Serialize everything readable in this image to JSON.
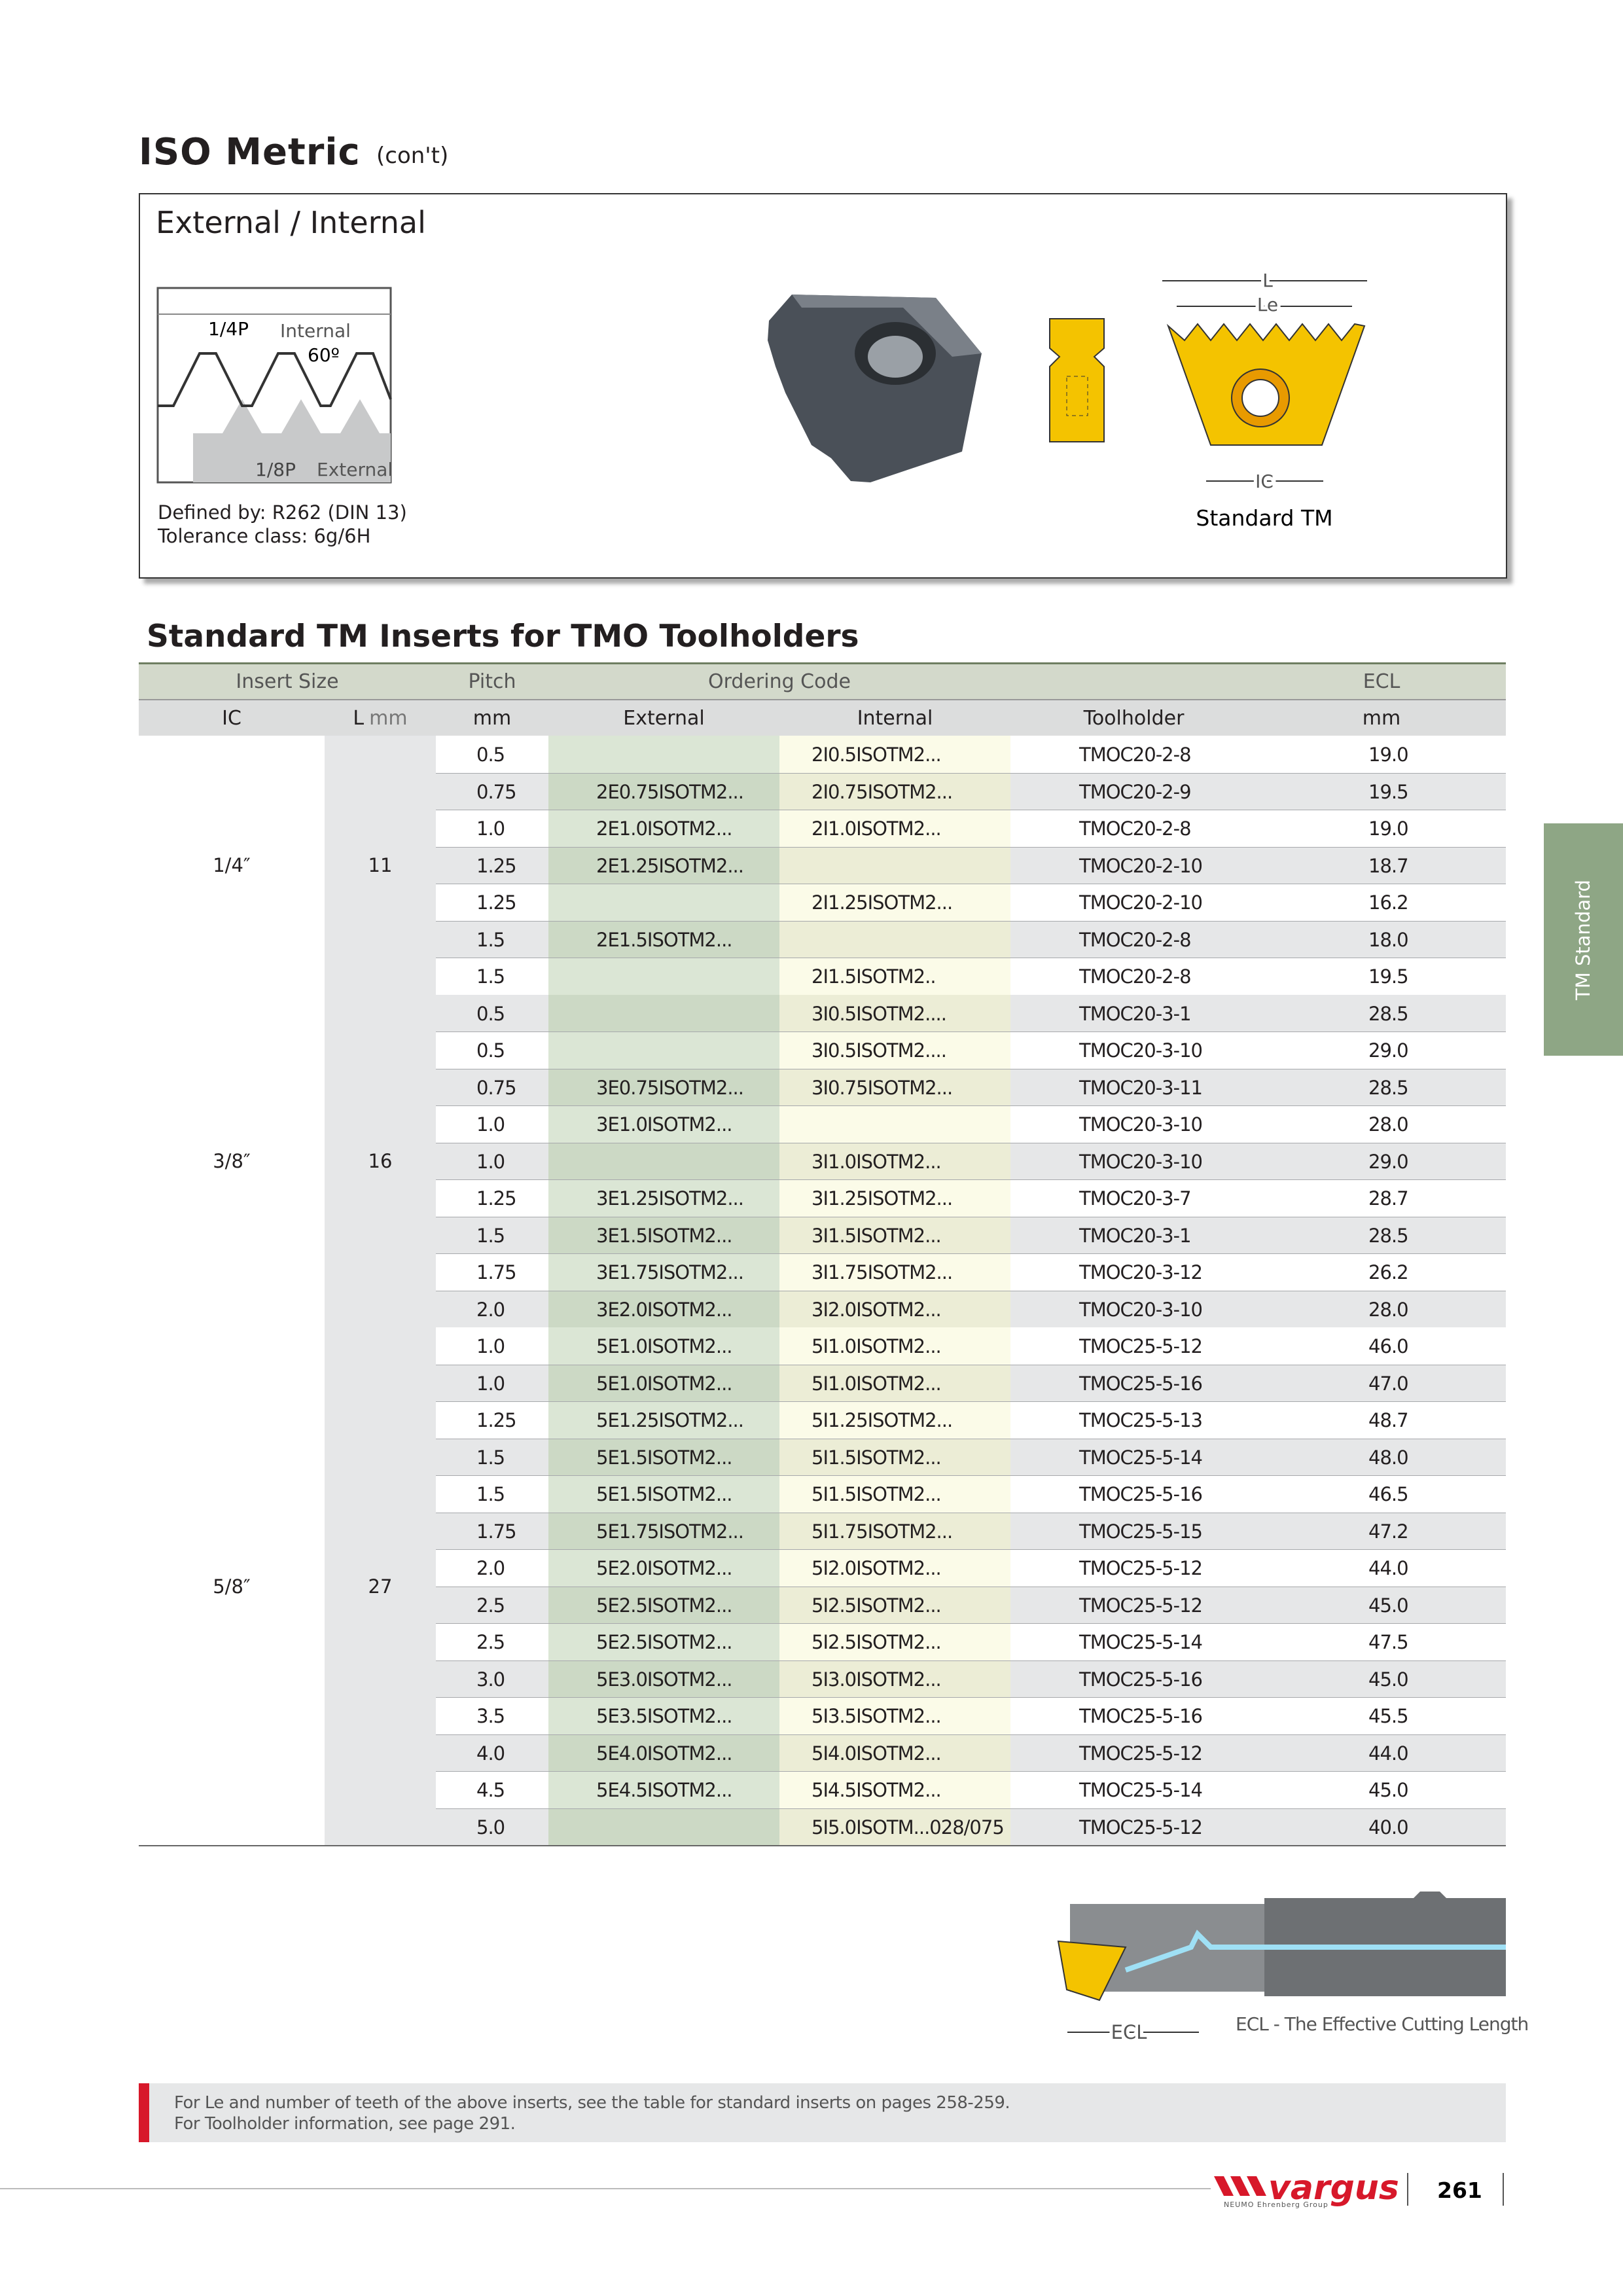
{
  "header": {
    "title": "ISO Metric",
    "subtitle": "(con't)"
  },
  "box": {
    "title": "External / Internal",
    "profile_labels": {
      "quarter_pitch": "1/4P",
      "internal": "Internal",
      "angle": "60º",
      "eighth_pitch": "1/8P",
      "external": "External"
    },
    "defined_by": "Defined by: R262 (DIN 13)",
    "tolerance": "Tolerance class: 6g/6H",
    "dimension_labels": {
      "l": "L",
      "le": "Le",
      "ic": "IC"
    },
    "insert_caption": "Standard TM"
  },
  "table": {
    "title": "Standard TM Inserts for TMO Toolholders",
    "header_row_1": {
      "insert_size": "Insert Size",
      "pitch": "Pitch",
      "ordering_code": "Ordering Code",
      "ecl": "ECL"
    },
    "header_row_2": {
      "ic": "IC",
      "l": "L",
      "l_unit": "mm",
      "pitch_unit": "mm",
      "external": "External",
      "internal": "Internal",
      "toolholder": "Toolholder",
      "ecl_unit": "mm"
    },
    "groups": [
      {
        "ic": "1/4″",
        "l": "11",
        "rows": [
          [
            "0.5",
            null,
            "2I0.5ISOTM2...",
            "TMOC20-2-8",
            "19.0"
          ],
          [
            "0.75",
            "2E0.75ISOTM2...",
            "2I0.75ISOTM2...",
            "TMOC20-2-9",
            "19.5"
          ],
          [
            "1.0",
            "2E1.0ISOTM2...",
            "2I1.0ISOTM2...",
            "TMOC20-2-8",
            "19.0"
          ],
          [
            "1.25",
            "2E1.25ISOTM2...",
            null,
            "TMOC20-2-10",
            "18.7"
          ],
          [
            "1.25",
            null,
            "2I1.25ISOTM2...",
            "TMOC20-2-10",
            "16.2"
          ],
          [
            "1.5",
            "2E1.5ISOTM2...",
            null,
            "TMOC20-2-8",
            "18.0"
          ],
          [
            "1.5",
            null,
            "2I1.5ISOTM2..",
            "TMOC20-2-8",
            "19.5"
          ]
        ]
      },
      {
        "ic": "3/8″",
        "l": "16",
        "rows": [
          [
            "0.5",
            null,
            "3I0.5ISOTM2....",
            "TMOC20-3-1",
            "28.5"
          ],
          [
            "0.5",
            null,
            "3I0.5ISOTM2....",
            "TMOC20-3-10",
            "29.0"
          ],
          [
            "0.75",
            "3E0.75ISOTM2...",
            "3I0.75ISOTM2...",
            "TMOC20-3-11",
            "28.5"
          ],
          [
            "1.0",
            "3E1.0ISOTM2...",
            null,
            "TMOC20-3-10",
            "28.0"
          ],
          [
            "1.0",
            null,
            "3I1.0ISOTM2...",
            "TMOC20-3-10",
            "29.0"
          ],
          [
            "1.25",
            "3E1.25ISOTM2...",
            "3I1.25ISOTM2...",
            "TMOC20-3-7",
            "28.7"
          ],
          [
            "1.5",
            "3E1.5ISOTM2...",
            "3I1.5ISOTM2...",
            "TMOC20-3-1",
            "28.5"
          ],
          [
            "1.75",
            "3E1.75ISOTM2...",
            "3I1.75ISOTM2...",
            "TMOC20-3-12",
            "26.2"
          ],
          [
            "2.0",
            "3E2.0ISOTM2...",
            "3I2.0ISOTM2...",
            "TMOC20-3-10",
            "28.0"
          ]
        ]
      },
      {
        "ic": "5/8″",
        "l": "27",
        "rows": [
          [
            "1.0",
            "5E1.0ISOTM2...",
            "5I1.0ISOTM2...",
            "TMOC25-5-12",
            "46.0"
          ],
          [
            "1.0",
            "5E1.0ISOTM2...",
            "5I1.0ISOTM2...",
            "TMOC25-5-16",
            "47.0"
          ],
          [
            "1.25",
            "5E1.25ISOTM2...",
            "5I1.25ISOTM2...",
            "TMOC25-5-13",
            "48.7"
          ],
          [
            "1.5",
            "5E1.5ISOTM2...",
            "5I1.5ISOTM2...",
            "TMOC25-5-14",
            "48.0"
          ],
          [
            "1.5",
            "5E1.5ISOTM2...",
            "5I1.5ISOTM2...",
            "TMOC25-5-16",
            "46.5"
          ],
          [
            "1.75",
            "5E1.75ISOTM2...",
            "5I1.75ISOTM2...",
            "TMOC25-5-15",
            "47.2"
          ],
          [
            "2.0",
            "5E2.0ISOTM2...",
            "5I2.0ISOTM2...",
            "TMOC25-5-12",
            "44.0"
          ],
          [
            "2.5",
            "5E2.5ISOTM2...",
            "5I2.5ISOTM2...",
            "TMOC25-5-12",
            "45.0"
          ],
          [
            "2.5",
            "5E2.5ISOTM2...",
            "5I2.5ISOTM2...",
            "TMOC25-5-14",
            "47.5"
          ],
          [
            "3.0",
            "5E3.0ISOTM2...",
            "5I3.0ISOTM2...",
            "TMOC25-5-16",
            "45.0"
          ],
          [
            "3.5",
            "5E3.5ISOTM2...",
            "5I3.5ISOTM2...",
            "TMOC25-5-16",
            "45.5"
          ],
          [
            "4.0",
            "5E4.0ISOTM2...",
            "5I4.0ISOTM2...",
            "TMOC25-5-12",
            "44.0"
          ],
          [
            "4.5",
            "5E4.5ISOTM2...",
            "5I4.5ISOTM2...",
            "TMOC25-5-14",
            "45.0"
          ],
          [
            "5.0",
            null,
            "5I5.0ISOTM...028/075",
            "TMOC25-5-12",
            "40.0"
          ]
        ]
      }
    ]
  },
  "ecl_figure": {
    "label": "ECL",
    "caption": "ECL - The  Effective Cutting Length"
  },
  "side_tab": "TM Standard",
  "footnote": [
    "For Le and number of teeth of the above inserts, see the table for standard inserts on pages 258-259.",
    "For Toolholder information, see page 291."
  ],
  "footer": {
    "brand": "vargus",
    "brand_group": "NEUMO Ehrenberg Group",
    "page_number": "261"
  }
}
